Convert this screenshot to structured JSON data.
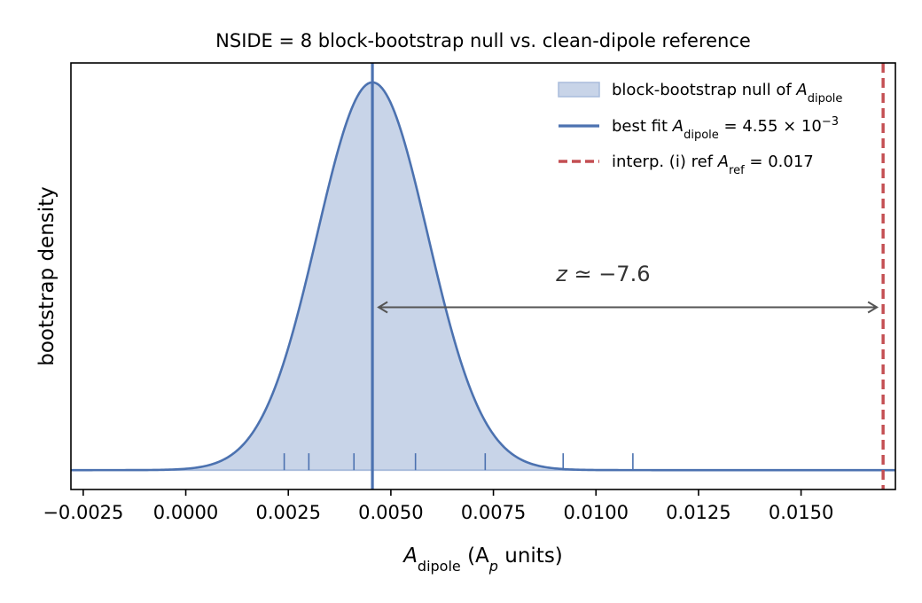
{
  "chart_data": {
    "type": "area",
    "title": "NSIDE = 8 block-bootstrap null vs. clean-dipole reference",
    "xlabel": {
      "main": "A",
      "sub": "dipole",
      "rest_a": " (A",
      "rest_sub": "p",
      "rest_b": " units)"
    },
    "ylabel": "bootstrap density",
    "xlim": [
      -0.0028,
      0.0173
    ],
    "ylim": [
      -0.05,
      1.05
    ],
    "xticks": [
      -0.0025,
      0.0,
      0.0025,
      0.005,
      0.0075,
      0.01,
      0.0125,
      0.015
    ],
    "xtick_labels": [
      "−0.0025",
      "0.0000",
      "0.0025",
      "0.0050",
      "0.0075",
      "0.0100",
      "0.0125",
      "0.0150"
    ],
    "yticks_shown": false,
    "null_distribution": {
      "mean": 0.00455,
      "sd": 0.00135,
      "peak_density": 1.0
    },
    "rug": [
      0.0024,
      0.003,
      0.0041,
      0.0056,
      0.0073,
      0.0092,
      0.0109
    ],
    "best_fit": 0.00455,
    "reference": 0.017,
    "arrow": {
      "from": 0.00455,
      "to": 0.017,
      "y": 0.42
    },
    "annotation": {
      "text_a": "z",
      "text_b": " ≃ −7.6",
      "x": 0.0092,
      "y": 0.48
    },
    "legend": {
      "placement": "top-right",
      "entries": [
        {
          "name": "null",
          "pre": "block-bootstrap null of ",
          "main": "A",
          "sub": "dipole",
          "post": ""
        },
        {
          "name": "best-fit",
          "pre": "best fit ",
          "main": "A",
          "sub": "dipole",
          "post": " = 4.55 × 10",
          "sup": "−3"
        },
        {
          "name": "reference",
          "pre": "interp. (i) ref ",
          "main": "A",
          "sub": "ref",
          "post": " = 0.017"
        }
      ]
    },
    "colors": {
      "null_fill": "#c8d4e8",
      "null_line": "#4c72b0",
      "best_fit": "#4c72b0",
      "reference": "#c44e52",
      "arrow": "#555555",
      "annotation": "#333333"
    }
  }
}
